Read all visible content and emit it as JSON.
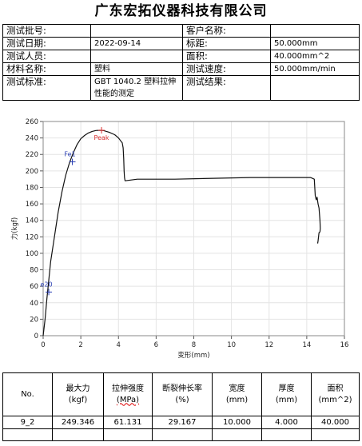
{
  "title": "广东宏拓仪器科技有限公司",
  "info": {
    "rows": [
      [
        {
          "t": "测试批号:"
        },
        {
          "t": ""
        },
        {
          "t": "客户名称:"
        },
        {
          "t": ""
        }
      ],
      [
        {
          "t": "测试日期:"
        },
        {
          "t": "2022-09-14"
        },
        {
          "t": "标距:"
        },
        {
          "t": "50.000mm"
        }
      ],
      [
        {
          "t": "测试人员:"
        },
        {
          "t": ""
        },
        {
          "t": "面积:"
        },
        {
          "t": "40.000mm^2"
        }
      ],
      [
        {
          "t": "材料名称:"
        },
        {
          "t": "塑料"
        },
        {
          "t": "测试速度:"
        },
        {
          "t": "50.000mm/min"
        }
      ],
      [
        {
          "t": "测试标准:"
        },
        {
          "t": "GBT 1040.2 塑料拉伸性能的测定"
        },
        {
          "t": "测试结果:"
        },
        {
          "t": ""
        }
      ]
    ]
  },
  "chart_data": {
    "type": "line",
    "xlabel": "变形(mm)",
    "ylabel": "力(kgf)",
    "xlim": [
      0,
      16
    ],
    "ylim": [
      0,
      260
    ],
    "xticks": [
      0,
      2,
      4,
      6,
      8,
      10,
      12,
      14,
      16
    ],
    "yticks": [
      0,
      20,
      40,
      60,
      80,
      100,
      120,
      140,
      160,
      180,
      200,
      220,
      240,
      260
    ],
    "grid": true,
    "series": [
      {
        "x": [
          0.0,
          0.1,
          0.2,
          0.3,
          0.4,
          0.6,
          0.8,
          1.0,
          1.2,
          1.4,
          1.6,
          1.8,
          2.0,
          2.2,
          2.4,
          2.6,
          2.8,
          3.0,
          3.2,
          3.5,
          3.8,
          4.0,
          4.1,
          4.2,
          4.25,
          4.28,
          4.3,
          4.32,
          4.35,
          5.0,
          7.0,
          9.0,
          11.0,
          13.0,
          14.2,
          14.4,
          14.45,
          14.5,
          14.55,
          14.6,
          14.65,
          14.7,
          14.72,
          14.7,
          14.65,
          14.6,
          14.58
        ],
        "y": [
          0,
          20,
          45,
          68,
          90,
          120,
          150,
          175,
          195,
          210,
          222,
          232,
          239,
          243,
          246,
          248,
          249,
          249.3,
          249,
          247,
          244,
          240,
          237,
          234,
          228,
          215,
          200,
          192,
          188,
          190,
          190,
          191,
          192,
          192,
          192,
          190,
          170,
          165,
          168,
          160,
          155,
          140,
          130,
          126,
          125,
          115,
          112
        ]
      }
    ],
    "annotations": [
      {
        "label": "Peak",
        "x": 3.1,
        "y": 249.3,
        "color": "#d93030"
      },
      {
        "label": "Fe1",
        "x": 1.55,
        "y": 211,
        "color": "#2a3fb4"
      },
      {
        "label": "e20",
        "x": 0.3,
        "y": 53,
        "color": "#2a3fb4"
      }
    ]
  },
  "results": {
    "headers": [
      {
        "label": "No.",
        "unit": ""
      },
      {
        "label": "最大力",
        "unit": "(kgf)"
      },
      {
        "label": "拉伸强度",
        "unit": "(MPa)"
      },
      {
        "label": "断裂伸长率",
        "unit": "(%)"
      },
      {
        "label": "宽度",
        "unit": "(mm)"
      },
      {
        "label": "厚度",
        "unit": "(mm)"
      },
      {
        "label": "面积",
        "unit": "(mm^2)"
      }
    ],
    "rows": [
      [
        "9_2",
        "249.346",
        "61.131",
        "29.167",
        "10.000",
        "4.000",
        "40.000"
      ]
    ]
  }
}
